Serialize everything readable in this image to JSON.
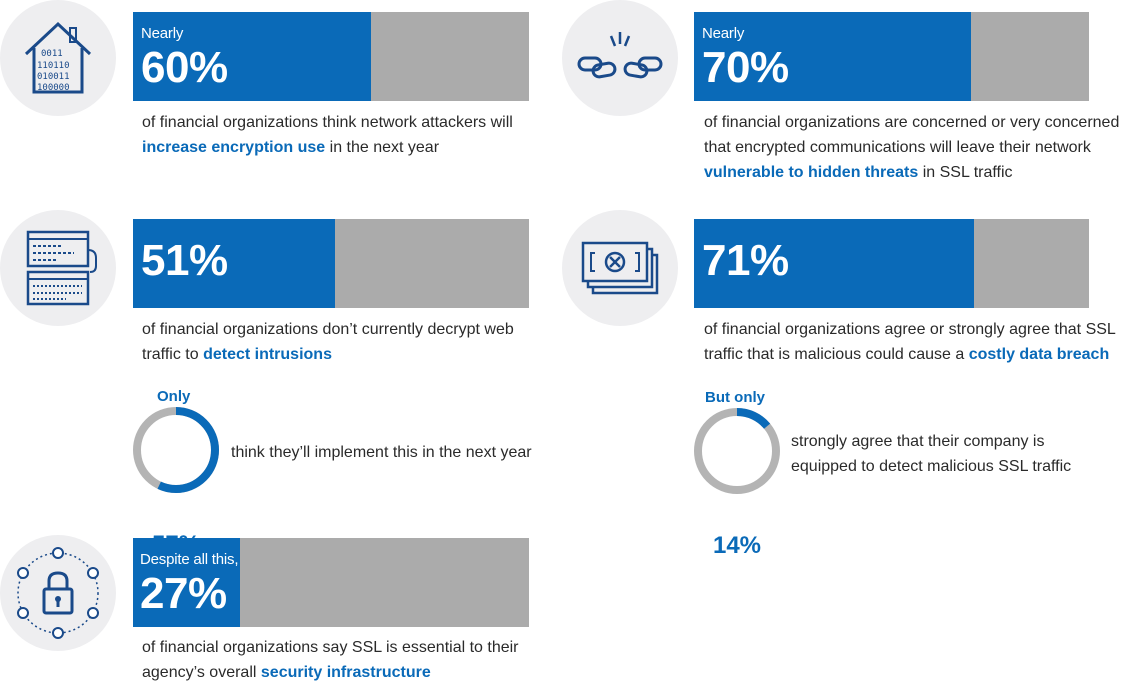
{
  "colors": {
    "blue": "#0a6ab8",
    "gray": "#ababab",
    "icon_bg": "#eeeef0"
  },
  "stats": [
    {
      "icon": "binary-house-icon",
      "lead": "Nearly",
      "percent": "60%",
      "value": 60,
      "desc_before": "of financial organizations think network attackers will ",
      "desc_highlight": "increase encryption use",
      "desc_after": " in the next year"
    },
    {
      "icon": "broken-chain-icon",
      "lead": "Nearly",
      "percent": "70%",
      "value": 70,
      "desc_before": "of financial organizations are concerned or very concerned that encrypted communications will leave their network ",
      "desc_highlight": "vulnerable to hidden threats",
      "desc_after": " in SSL traffic"
    },
    {
      "icon": "code-window-icon",
      "lead": "",
      "percent": "51%",
      "value": 51,
      "desc_before": "of financial organizations don’t currently decrypt web traffic to ",
      "desc_highlight": "detect intrusions",
      "desc_after": ""
    },
    {
      "icon": "money-bills-icon",
      "lead": "",
      "percent": "71%",
      "value": 71,
      "desc_before": "of financial organizations agree or strongly agree that SSL traffic that is malicious could cause a ",
      "desc_highlight": "costly data breach",
      "desc_after": ""
    },
    {
      "icon": "network-lock-icon",
      "lead": "Despite all this,",
      "percent": "27%",
      "value": 27,
      "desc_before": "of financial organizations say SSL is essential to their agency’s overall ",
      "desc_highlight": "security infrastructure",
      "desc_after": ""
    }
  ],
  "rings": [
    {
      "label": "Only",
      "percent": "57%",
      "value": 57,
      "text": "think they’ll implement this in the next year"
    },
    {
      "label": "But only",
      "percent": "14%",
      "value": 14,
      "text": "strongly agree that their company is equipped to detect malicious SSL traffic"
    }
  ]
}
